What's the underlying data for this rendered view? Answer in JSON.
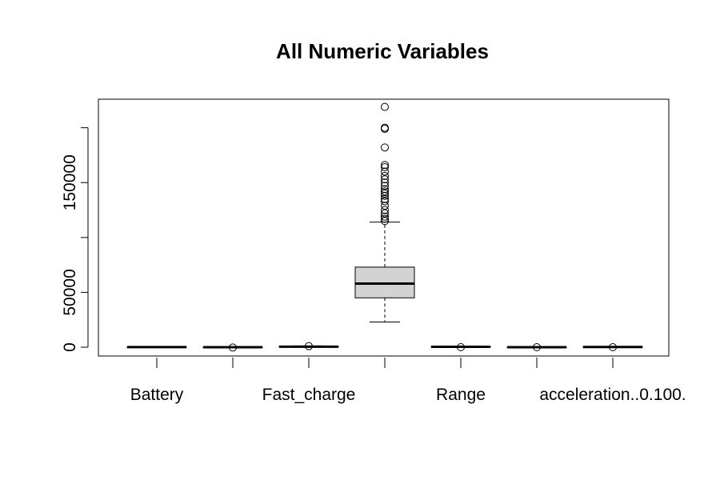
{
  "chart_data": {
    "type": "boxplot",
    "title": "All Numeric Variables",
    "xlabel": "",
    "ylabel": "",
    "categories": [
      "Battery",
      "",
      "Fast_charge",
      "",
      "Range",
      "",
      "acceleration..0.100."
    ],
    "ylim": [
      -8000,
      226000
    ],
    "y_ticks": [
      0,
      50000,
      100000,
      150000,
      200000
    ],
    "y_tick_labels": [
      "0",
      "50000",
      "",
      "150000",
      ""
    ],
    "grid": false,
    "legend": "none",
    "colors": {
      "box_fill": "#d3d3d3",
      "stroke": "#000000"
    },
    "boxes": [
      {
        "min": 20,
        "q1": 60,
        "median": 75,
        "q3": 85,
        "max": 110,
        "outliers": []
      },
      {
        "min": 3,
        "q1": 10,
        "median": 12,
        "q3": 16,
        "max": 30,
        "outliers": [
          -300
        ]
      },
      {
        "min": 150,
        "q1": 350,
        "median": 500,
        "q3": 700,
        "max": 1200,
        "outliers": [
          1000
        ]
      },
      {
        "min": 23000,
        "q1": 45000,
        "median": 58000,
        "q3": 73000,
        "max": 114000,
        "outliers": [
          115000,
          117000,
          119000,
          122000,
          125000,
          129000,
          133000,
          135000,
          138000,
          140000,
          142000,
          144000,
          147000,
          150000,
          153000,
          156000,
          160000,
          164000,
          166000,
          182000,
          199000,
          200000,
          219000
        ]
      },
      {
        "min": 150,
        "q1": 300,
        "median": 400,
        "q3": 500,
        "max": 660,
        "outliers": [
          0
        ]
      },
      {
        "min": 2,
        "q1": 5,
        "median": 7,
        "q3": 9,
        "max": 13,
        "outliers": [
          0
        ]
      },
      {
        "min": 100,
        "q1": 150,
        "median": 180,
        "q3": 220,
        "max": 280,
        "outliers": [
          0
        ]
      }
    ]
  }
}
